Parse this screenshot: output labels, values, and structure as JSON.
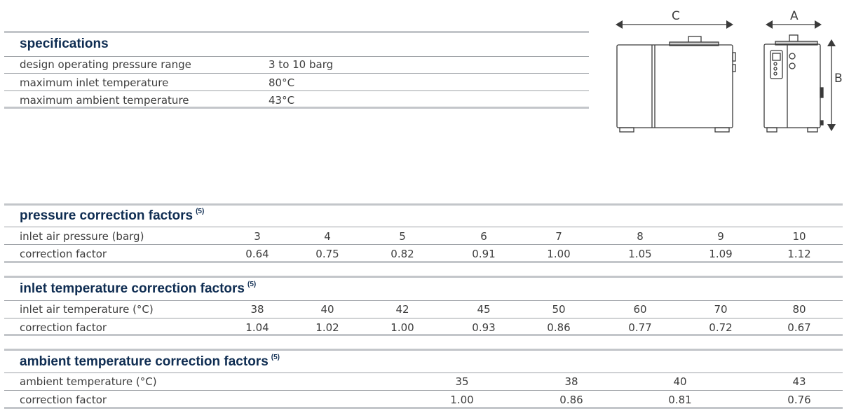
{
  "specifications": {
    "title": "specifications",
    "rows": [
      {
        "label": "design operating pressure range",
        "value": "3 to 10 barg"
      },
      {
        "label": "maximum inlet temperature",
        "value": "80°C"
      },
      {
        "label": "maximum ambient temperature",
        "value": "43°C"
      }
    ]
  },
  "diagram": {
    "label_c": "C",
    "label_a": "A",
    "label_b": "B"
  },
  "pressure": {
    "title": "pressure correction factors",
    "note": "(5)",
    "row1_label": "inlet air pressure (barg)",
    "row1_values": [
      "3",
      "4",
      "5",
      "6",
      "7",
      "8",
      "9",
      "10"
    ],
    "row2_label": "correction factor",
    "row2_values": [
      "0.64",
      "0.75",
      "0.82",
      "0.91",
      "1.00",
      "1.05",
      "1.09",
      "1.12"
    ]
  },
  "inlet": {
    "title": "inlet temperature correction factors",
    "note": "(5)",
    "row1_label": "inlet air temperature (°C)",
    "row1_values": [
      "38",
      "40",
      "42",
      "45",
      "50",
      "60",
      "70",
      "80"
    ],
    "row2_label": "correction factor",
    "row2_values": [
      "1.04",
      "1.02",
      "1.00",
      "0.93",
      "0.86",
      "0.77",
      "0.72",
      "0.67"
    ]
  },
  "ambient": {
    "title": "ambient temperature correction factors",
    "note": "(5)",
    "row1_label": "ambient temperature (°C)",
    "row1_values": [
      "35",
      "38",
      "40",
      "43"
    ],
    "row2_label": "correction factor",
    "row2_values": [
      "1.00",
      "0.86",
      "0.81",
      "0.76"
    ]
  }
}
